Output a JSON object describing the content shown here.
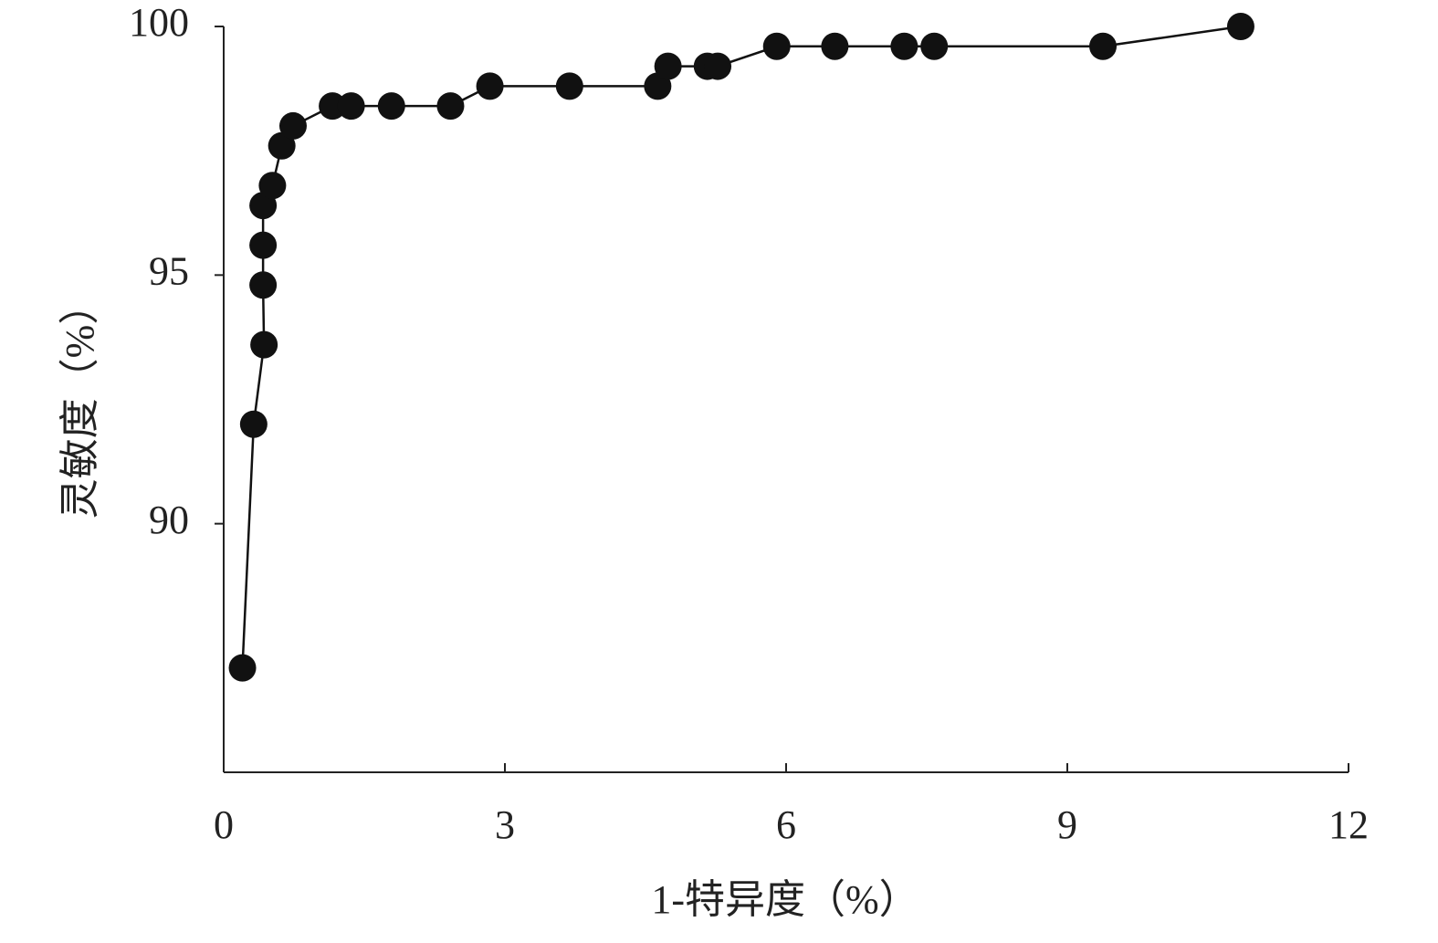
{
  "chart_data": {
    "type": "line",
    "x_label": "1-特异度（%）",
    "y_label": "灵敏度（%）",
    "x": [
      0.2,
      0.32,
      0.43,
      0.42,
      0.42,
      0.42,
      0.52,
      0.62,
      0.74,
      1.16,
      1.36,
      1.79,
      2.42,
      2.84,
      3.69,
      4.63,
      4.74,
      5.16,
      5.27,
      5.9,
      6.52,
      7.26,
      7.58,
      9.38,
      10.85
    ],
    "series": [
      {
        "color": "#111111",
        "values": [
          87.1,
          92.0,
          93.6,
          94.8,
          95.6,
          96.4,
          96.8,
          97.6,
          98.0,
          98.4,
          98.4,
          98.4,
          98.4,
          98.8,
          98.8,
          98.8,
          99.2,
          99.2,
          99.2,
          99.6,
          99.6,
          99.6,
          99.6,
          99.6,
          100
        ]
      }
    ],
    "xlim": [
      0,
      12
    ],
    "xticks": [
      0,
      3,
      6,
      9,
      12
    ],
    "ylim": [
      85,
      100
    ],
    "yticks": [
      90,
      95,
      100
    ]
  }
}
